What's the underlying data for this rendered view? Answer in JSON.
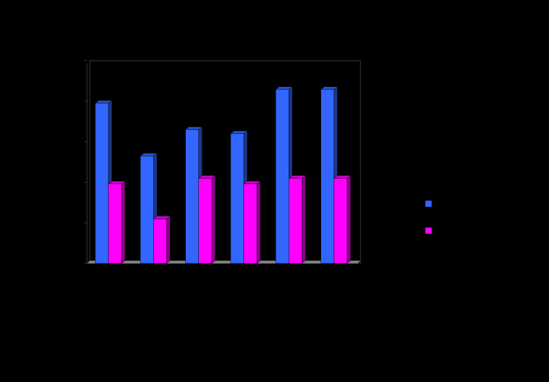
{
  "chart_data": {
    "type": "bar3d",
    "categories": [
      null,
      null,
      null,
      null,
      null,
      null
    ],
    "series": [
      {
        "color": "#3366ff",
        "values": [
          3.95,
          2.65,
          3.3,
          3.2,
          4.29,
          4.29
        ]
      },
      {
        "color": "#ff00ff",
        "values": [
          1.96,
          1.1,
          2.1,
          1.96,
          2.1,
          2.1
        ]
      }
    ],
    "ylim": [
      0,
      5
    ],
    "yticks": [
      0,
      1,
      2,
      3,
      4,
      5
    ],
    "legend": "right"
  }
}
